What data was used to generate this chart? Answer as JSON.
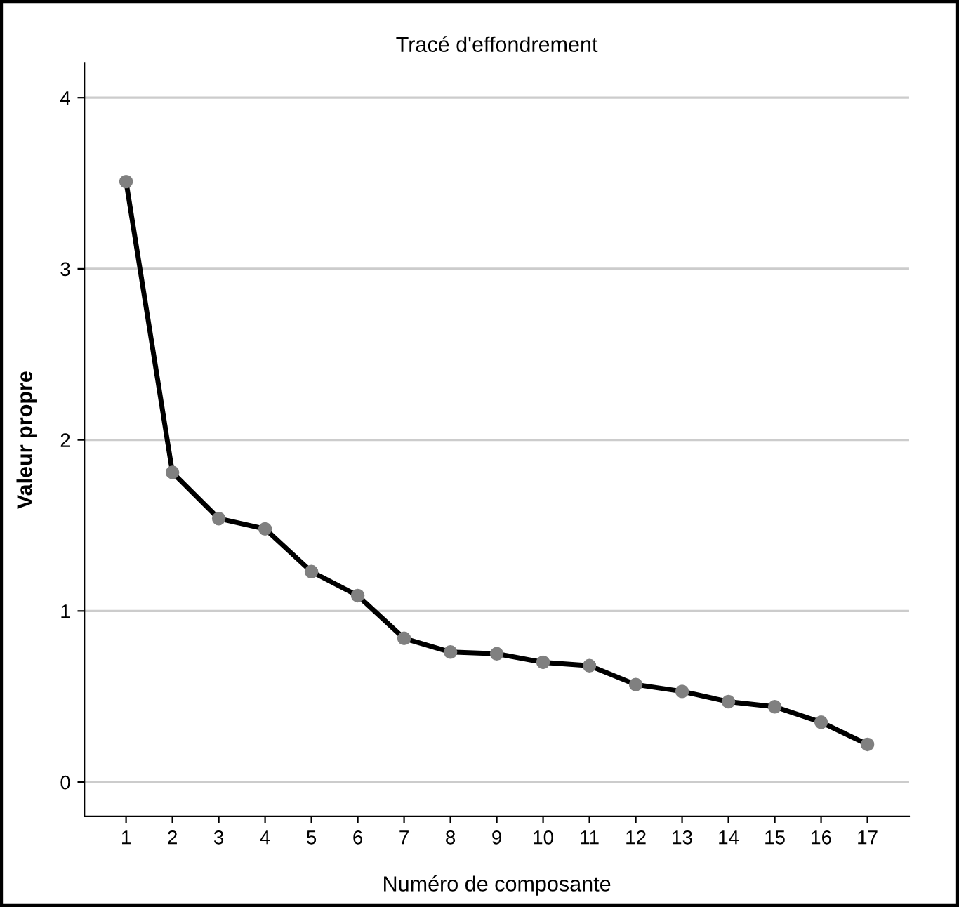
{
  "chart_data": {
    "type": "line",
    "title": "Tracé d'effondrement",
    "xlabel": "Numéro de composante",
    "ylabel": "Valeur propre",
    "categories": [
      "1",
      "2",
      "3",
      "4",
      "5",
      "6",
      "7",
      "8",
      "9",
      "10",
      "11",
      "12",
      "13",
      "14",
      "15",
      "16",
      "17"
    ],
    "series": [
      {
        "color": "#000000",
        "values": [
          3.51,
          1.81,
          1.54,
          1.48,
          1.23,
          1.09,
          0.84,
          0.76,
          0.75,
          0.7,
          0.68,
          0.57,
          0.53,
          0.47,
          0.44,
          0.35,
          0.22
        ]
      }
    ],
    "ylim": [
      -0.2,
      4.2
    ],
    "yticks": [
      0,
      1,
      2,
      3,
      4
    ],
    "grid": "y",
    "marker": "circle",
    "line_style": "solid",
    "legend": false
  }
}
